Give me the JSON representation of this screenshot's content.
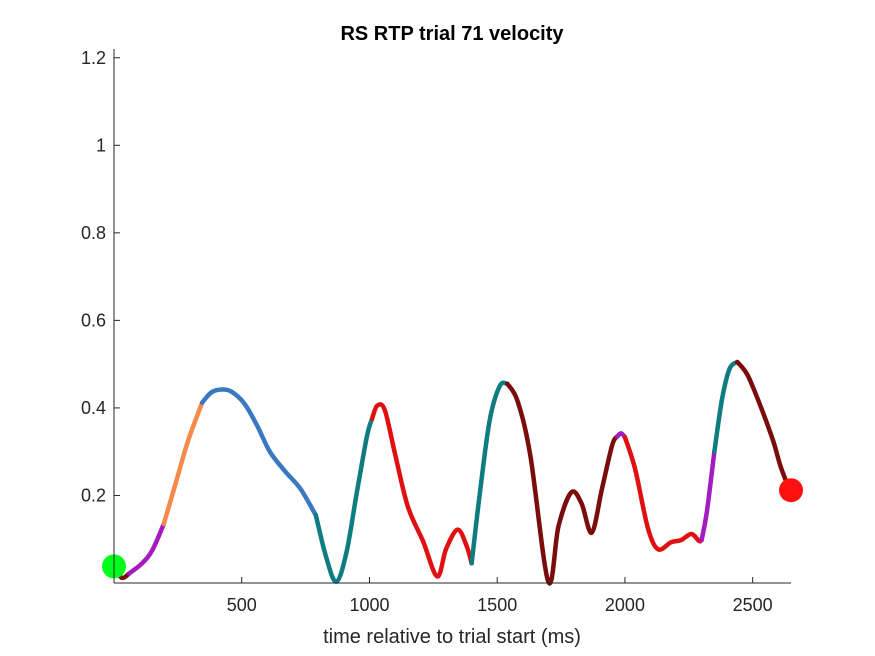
{
  "chart_data": {
    "type": "line",
    "title": "RS  RTP trial 71 velocity",
    "xlabel": "time relative to trial start (ms)",
    "ylabel": "",
    "xlim": [
      0,
      2650
    ],
    "ylim": [
      0,
      1.22
    ],
    "xticks": [
      500,
      1000,
      1500,
      2000,
      2500
    ],
    "xtick_labels": [
      "500",
      "1000",
      "1500",
      "2000",
      "2500"
    ],
    "yticks": [
      0.2,
      0.4,
      0.6,
      0.8,
      1.0,
      1.2
    ],
    "ytick_labels": [
      "0.2",
      "0.4",
      "0.6",
      "0.8",
      "1",
      "1.2"
    ],
    "grid": false,
    "legend": "none",
    "segments": [
      {
        "color": "#7B0C0C",
        "x": [
          0,
          30,
          60
        ],
        "y": [
          0.038,
          0.012,
          0.022
        ]
      },
      {
        "color": "#A41CBF",
        "x": [
          60,
          110,
          150,
          195
        ],
        "y": [
          0.022,
          0.045,
          0.075,
          0.135
        ]
      },
      {
        "color": "#F58A4B",
        "x": [
          195,
          240,
          290,
          345
        ],
        "y": [
          0.135,
          0.225,
          0.325,
          0.412
        ]
      },
      {
        "color": "#3A78C2",
        "x": [
          345,
          380,
          420,
          460,
          510,
          560,
          610,
          670,
          730,
          790
        ],
        "y": [
          0.412,
          0.435,
          0.442,
          0.437,
          0.41,
          0.36,
          0.3,
          0.255,
          0.215,
          0.155
        ]
      },
      {
        "color": "#0E7C80",
        "x": [
          790,
          830,
          870,
          910,
          950,
          990,
          1010
        ],
        "y": [
          0.155,
          0.06,
          0.003,
          0.07,
          0.205,
          0.335,
          0.375
        ]
      },
      {
        "color": "#E01010",
        "x": [
          1010,
          1030,
          1060,
          1100,
          1150,
          1210,
          1265,
          1300,
          1345,
          1380,
          1400
        ],
        "y": [
          0.375,
          0.405,
          0.395,
          0.295,
          0.175,
          0.095,
          0.015,
          0.078,
          0.122,
          0.085,
          0.045
        ]
      },
      {
        "color": "#0E7C80",
        "x": [
          1400,
          1430,
          1470,
          1510,
          1540
        ],
        "y": [
          0.045,
          0.195,
          0.37,
          0.45,
          0.455
        ]
      },
      {
        "color": "#7B0C0C",
        "x": [
          1540,
          1580,
          1630,
          1700,
          1740,
          1790,
          1830,
          1870,
          1910,
          1950,
          1970
        ],
        "y": [
          0.455,
          0.415,
          0.29,
          0.003,
          0.13,
          0.207,
          0.182,
          0.115,
          0.215,
          0.315,
          0.335
        ]
      },
      {
        "color": "#A41CBF",
        "x": [
          1970,
          1985,
          2000
        ],
        "y": [
          0.335,
          0.342,
          0.333
        ]
      },
      {
        "color": "#E01010",
        "x": [
          2000,
          2040,
          2090,
          2130,
          2180,
          2220,
          2260,
          2290,
          2300
        ],
        "y": [
          0.333,
          0.26,
          0.125,
          0.077,
          0.093,
          0.098,
          0.112,
          0.096,
          0.098
        ]
      },
      {
        "color": "#A41CBF",
        "x": [
          2300,
          2320,
          2350
        ],
        "y": [
          0.098,
          0.16,
          0.3
        ]
      },
      {
        "color": "#0E7C80",
        "x": [
          2350,
          2380,
          2410,
          2440
        ],
        "y": [
          0.3,
          0.42,
          0.49,
          0.505
        ]
      },
      {
        "color": "#7B0C0C",
        "x": [
          2440,
          2480,
          2530,
          2580,
          2610,
          2645
        ],
        "y": [
          0.505,
          0.475,
          0.405,
          0.325,
          0.265,
          0.212
        ]
      }
    ],
    "markers": [
      {
        "name": "start-marker",
        "x": 0,
        "y": 0.038,
        "color": "#00FF1A"
      },
      {
        "name": "end-marker",
        "x": 2650,
        "y": 0.212,
        "color": "#FF1010"
      }
    ]
  }
}
